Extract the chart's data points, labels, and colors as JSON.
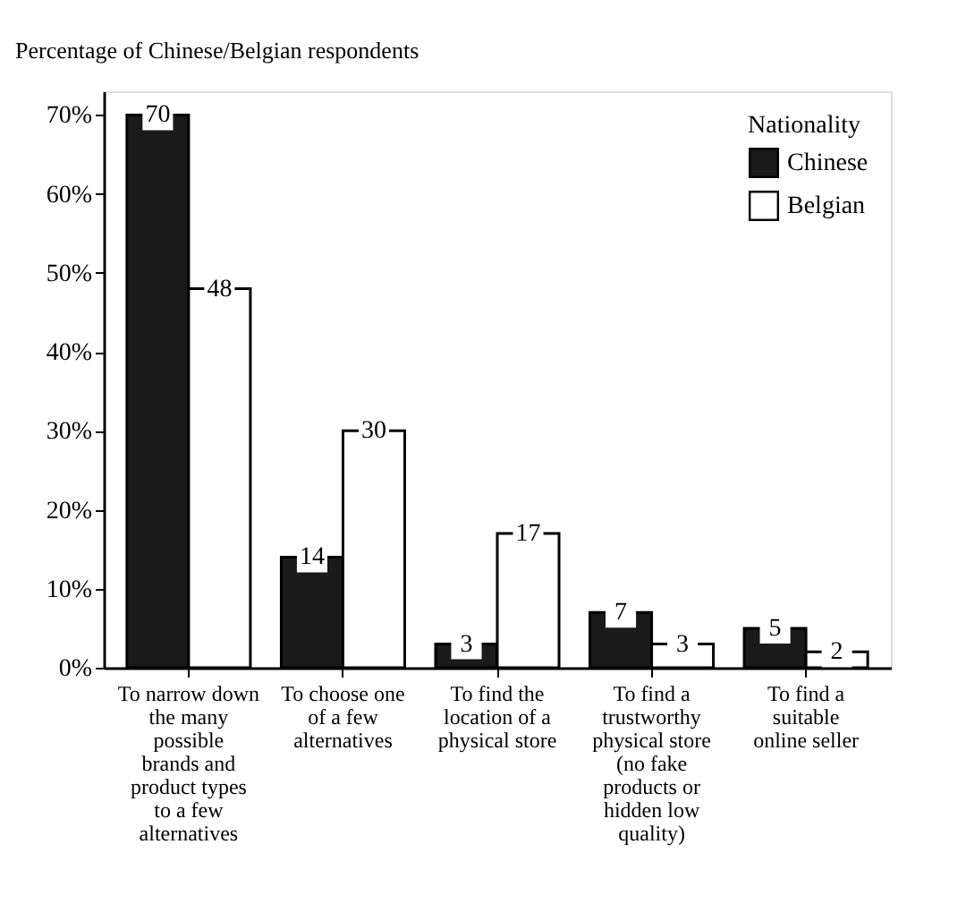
{
  "chart_data": {
    "type": "bar",
    "ylabel": "Percentage of Chinese/Belgian respondents",
    "categories": [
      "To narrow down the many possible brands and product types to a few alternatives",
      "To choose one of a few alternatives",
      "To find the location of a physical store",
      "To find a trustworthy physical store (no fake products or hidden low quality)",
      "To find a suitable online seller"
    ],
    "series": [
      {
        "name": "Chinese",
        "color": "#1a1a1a",
        "values": [
          70,
          14,
          3,
          7,
          5
        ]
      },
      {
        "name": "Belgian",
        "color": "#ffffff",
        "values": [
          48,
          30,
          17,
          3,
          2
        ]
      }
    ],
    "ylim": [
      0,
      73
    ],
    "yticks": [
      {
        "value": 0,
        "label": "0%"
      },
      {
        "value": 10,
        "label": "10%"
      },
      {
        "value": 20,
        "label": "20%"
      },
      {
        "value": 30,
        "label": "30%"
      },
      {
        "value": 40,
        "label": "40%"
      },
      {
        "value": 50,
        "label": "50%"
      },
      {
        "value": 60,
        "label": "60%"
      },
      {
        "value": 70,
        "label": "70%"
      }
    ],
    "legend_title": "Nationality",
    "legend": "top right",
    "data_labels": true,
    "grid": false
  }
}
